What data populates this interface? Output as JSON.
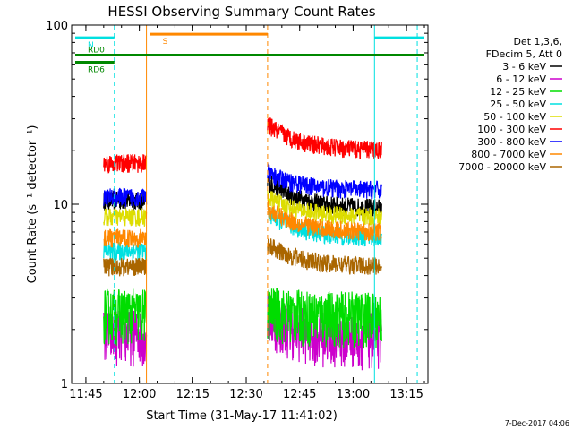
{
  "chart_data": {
    "type": "line",
    "title": "HESSI Observing Summary Count Rates",
    "xlabel": "Start Time (31-May-17 11:41:02)",
    "ylabel": "Count Rate (s⁻¹ detector⁻¹)",
    "x_range_min": [
      11.6833,
      13.35
    ],
    "x_ticks": [
      "11:45",
      "12:00",
      "12:15",
      "12:30",
      "12:45",
      "13:00",
      "13:15"
    ],
    "x_tick_values_min": [
      705,
      720,
      735,
      750,
      765,
      780,
      795
    ],
    "ylim": [
      1,
      100
    ],
    "yscale": "log",
    "y_ticks": [
      "1",
      "10",
      "100"
    ],
    "legend_header": [
      "Det 1,3,6,",
      "FDecim 5, Att 0"
    ],
    "legend_position": "right",
    "timestamp": "7-Dec-2017 04:06",
    "series": [
      {
        "name": "3 - 6 keV",
        "color": "#000000",
        "level_before": 10.5,
        "level_after_start": 13.5,
        "level_after_end": 9.5
      },
      {
        "name": "6 - 12 keV",
        "color": "#cc00cc",
        "level_before": 1.9,
        "level_after_start": 2.4,
        "level_after_end": 1.8
      },
      {
        "name": "12 - 25 keV",
        "color": "#00dd00",
        "level_before": 2.5,
        "level_after_start": 2.6,
        "level_after_end": 2.4
      },
      {
        "name": "25 - 50 keV",
        "color": "#00e0e0",
        "level_before": 5.5,
        "level_after_start": 9.0,
        "level_after_end": 6.5
      },
      {
        "name": "50 - 100 keV",
        "color": "#dddd00",
        "level_before": 8.5,
        "level_after_start": 11.0,
        "level_after_end": 8.5
      },
      {
        "name": "100 - 300 keV",
        "color": "#ff0000",
        "level_before": 17.0,
        "level_after_start": 28.0,
        "level_after_end": 20.0
      },
      {
        "name": "300 - 800 keV",
        "color": "#0000ff",
        "level_before": 11.0,
        "level_after_start": 15.0,
        "level_after_end": 12.0
      },
      {
        "name": "800 - 7000 keV",
        "color": "#ff8800",
        "level_before": 6.5,
        "level_after_start": 9.5,
        "level_after_end": 7.0
      },
      {
        "name": "7000 - 20000 keV",
        "color": "#aa6600",
        "level_before": 4.5,
        "level_after_start": 6.0,
        "level_after_end": 4.5
      }
    ],
    "data_intervals_min": [
      [
        11.8333,
        12.0333
      ],
      [
        12.6,
        13.1333
      ]
    ],
    "annotations": [
      {
        "label": "N",
        "color": "#00e0e0",
        "x_start": 11.7,
        "x_end": 11.8833,
        "y": 85
      },
      {
        "label": "S",
        "color": "#ff8800",
        "x_start": 12.05,
        "x_end": 12.6,
        "y": 89
      },
      {
        "label": "RD0",
        "color": "#008800",
        "x_start": 11.7,
        "x_end": 13.3333,
        "y": 68
      },
      {
        "label": "RD6",
        "color": "#008800",
        "x_start": 11.7,
        "x_end": 11.8833,
        "y": 62
      }
    ],
    "vertical_lines": [
      {
        "x_min": 11.8833,
        "color": "#00e0e0",
        "style": "dashed"
      },
      {
        "x_min": 12.0333,
        "color": "#ff8800",
        "style": "solid"
      },
      {
        "x_min": 12.6,
        "color": "#ff8800",
        "style": "dashed"
      },
      {
        "x_min": 13.1,
        "color": "#00e0e0",
        "style": "solid"
      },
      {
        "x_min": 13.3,
        "color": "#00e0e0",
        "style": "dashed"
      }
    ],
    "grid": false
  }
}
